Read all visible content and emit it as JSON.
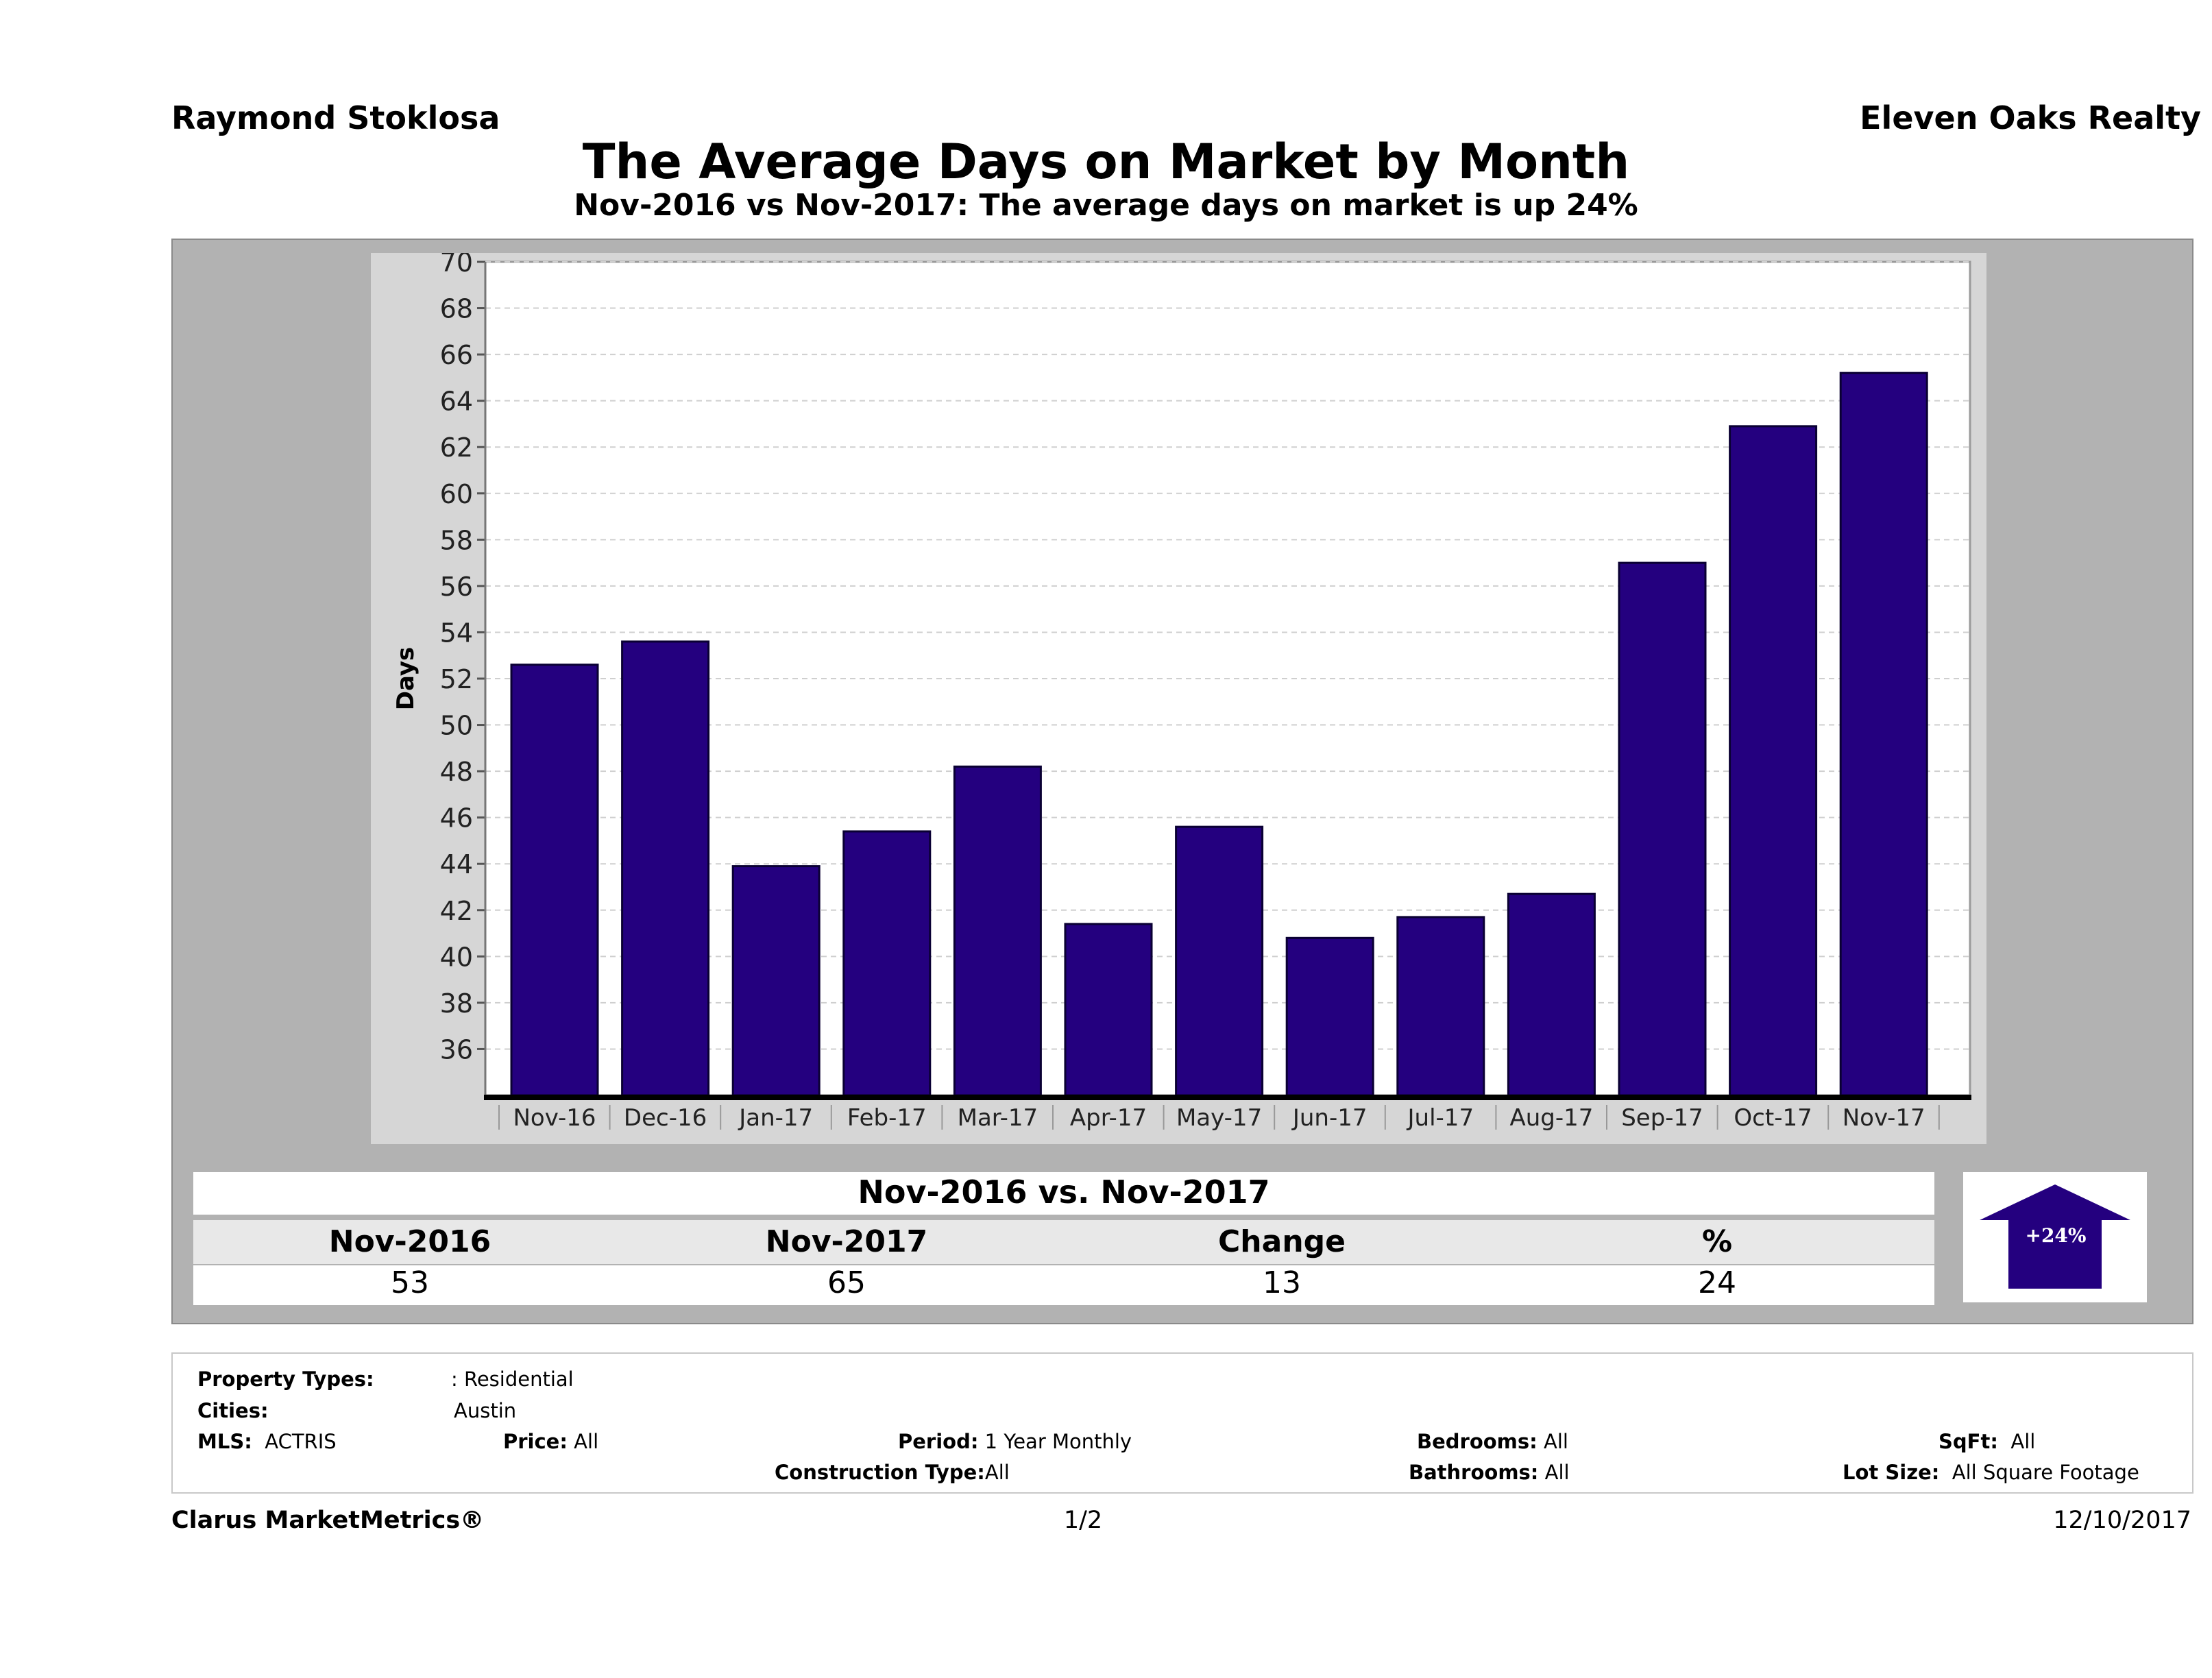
{
  "header": {
    "agent_name": "Raymond Stoklosa",
    "brokerage": "Eleven Oaks Realty",
    "title": "The Average Days on Market by Month",
    "subtitle": "Nov-2016 vs Nov-2017: The average days on market is up 24%"
  },
  "chart_data": {
    "type": "bar",
    "categories": [
      "Nov-16",
      "Dec-16",
      "Jan-17",
      "Feb-17",
      "Mar-17",
      "Apr-17",
      "May-17",
      "Jun-17",
      "Jul-17",
      "Aug-17",
      "Sep-17",
      "Oct-17",
      "Nov-17"
    ],
    "values": [
      52.6,
      53.6,
      43.9,
      45.4,
      48.2,
      41.4,
      45.6,
      40.8,
      41.7,
      42.7,
      57.0,
      62.9,
      65.2
    ],
    "ylabel": "Days",
    "ylim": [
      34,
      70
    ],
    "yticks": [
      36,
      38,
      40,
      42,
      44,
      46,
      48,
      50,
      52,
      54,
      56,
      58,
      60,
      62,
      64,
      66,
      68,
      70
    ],
    "grid": true,
    "bar_color": "#24007f"
  },
  "summary": {
    "heading": "Nov-2016 vs. Nov-2017",
    "columns": [
      "Nov-2016",
      "Nov-2017",
      "Change",
      "%"
    ],
    "values": [
      "53",
      "65",
      "13",
      "24"
    ],
    "badge": "+24%",
    "badge_color": "#24007f"
  },
  "filters": {
    "property_types_label": "Property Types:",
    "property_types_value": ": Residential",
    "cities_label": "Cities:",
    "cities_value": "Austin",
    "mls_label": "MLS:",
    "mls_value": "ACTRIS",
    "price_label": "Price:",
    "price_value": "All",
    "period_label": "Period:",
    "period_value": "1 Year Monthly",
    "construction_label": "Construction Type:",
    "construction_value": "All",
    "bedrooms_label": "Bedrooms:",
    "bedrooms_value": "All",
    "bathrooms_label": "Bathrooms:",
    "bathrooms_value": "All",
    "sqft_label": "SqFt:",
    "sqft_value": "All",
    "lotsize_label": "Lot Size:",
    "lotsize_value": "All Square Footage"
  },
  "footer": {
    "brand": "Clarus MarketMetrics®",
    "page": "1/2",
    "date": "12/10/2017"
  }
}
